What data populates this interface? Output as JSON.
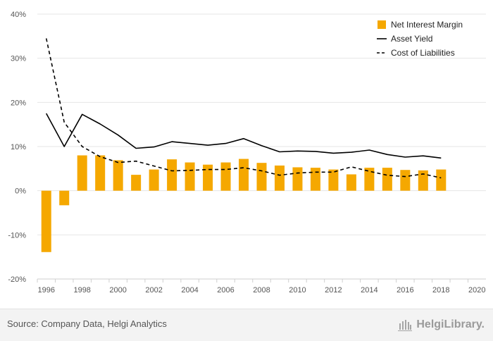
{
  "chart_data": {
    "type": "bar+line",
    "x": [
      "1996",
      "1997",
      "1998",
      "1999",
      "2000",
      "2001",
      "2002",
      "2003",
      "2004",
      "2005",
      "2006",
      "2007",
      "2008",
      "2009",
      "2010",
      "2011",
      "2012",
      "2013",
      "2014",
      "2015",
      "2016",
      "2017",
      "2018",
      "2019",
      "2020"
    ],
    "x_tick_labels": [
      "1996",
      "1998",
      "2000",
      "2002",
      "2004",
      "2006",
      "2008",
      "2010",
      "2012",
      "2014",
      "2016",
      "2018",
      "2020"
    ],
    "ylim": [
      -20,
      40
    ],
    "y_ticks": [
      -20,
      -10,
      0,
      10,
      20,
      30,
      40
    ],
    "y_tick_labels": [
      "-20%",
      "-10%",
      "0%",
      "10%",
      "20%",
      "30%",
      "40%"
    ],
    "grid": "horizontal",
    "legend_position": "top-right",
    "series": [
      {
        "name": "Net Interest Margin",
        "type": "bar",
        "color": "#f5a800",
        "values": [
          -13.9,
          -3.3,
          8.0,
          8.0,
          6.9,
          3.6,
          4.8,
          7.1,
          6.4,
          5.9,
          6.4,
          7.2,
          6.3,
          5.7,
          5.3,
          5.2,
          4.8,
          3.7,
          5.2,
          5.2,
          4.7,
          4.6,
          4.8,
          null,
          null
        ]
      },
      {
        "name": "Asset Yield",
        "type": "line",
        "style": "solid",
        "color": "#000000",
        "values": [
          17.5,
          10.0,
          17.3,
          15.1,
          12.6,
          9.6,
          9.9,
          11.1,
          10.7,
          10.3,
          10.7,
          11.8,
          10.2,
          8.8,
          9.0,
          8.9,
          8.5,
          8.7,
          9.2,
          8.2,
          7.6,
          7.9,
          7.4,
          null,
          null
        ]
      },
      {
        "name": "Cost of Liabilities",
        "type": "line",
        "style": "dashed",
        "color": "#000000",
        "values": [
          34.5,
          15.5,
          10.0,
          7.7,
          6.4,
          6.7,
          5.6,
          4.5,
          4.6,
          4.8,
          4.8,
          5.2,
          4.5,
          3.5,
          4.0,
          4.2,
          4.2,
          5.4,
          4.4,
          3.5,
          3.2,
          3.8,
          2.9,
          null,
          null
        ]
      }
    ]
  },
  "footer": {
    "source": "Source: Company Data, Helgi Analytics",
    "logo_text": "HelgiLibrary."
  }
}
